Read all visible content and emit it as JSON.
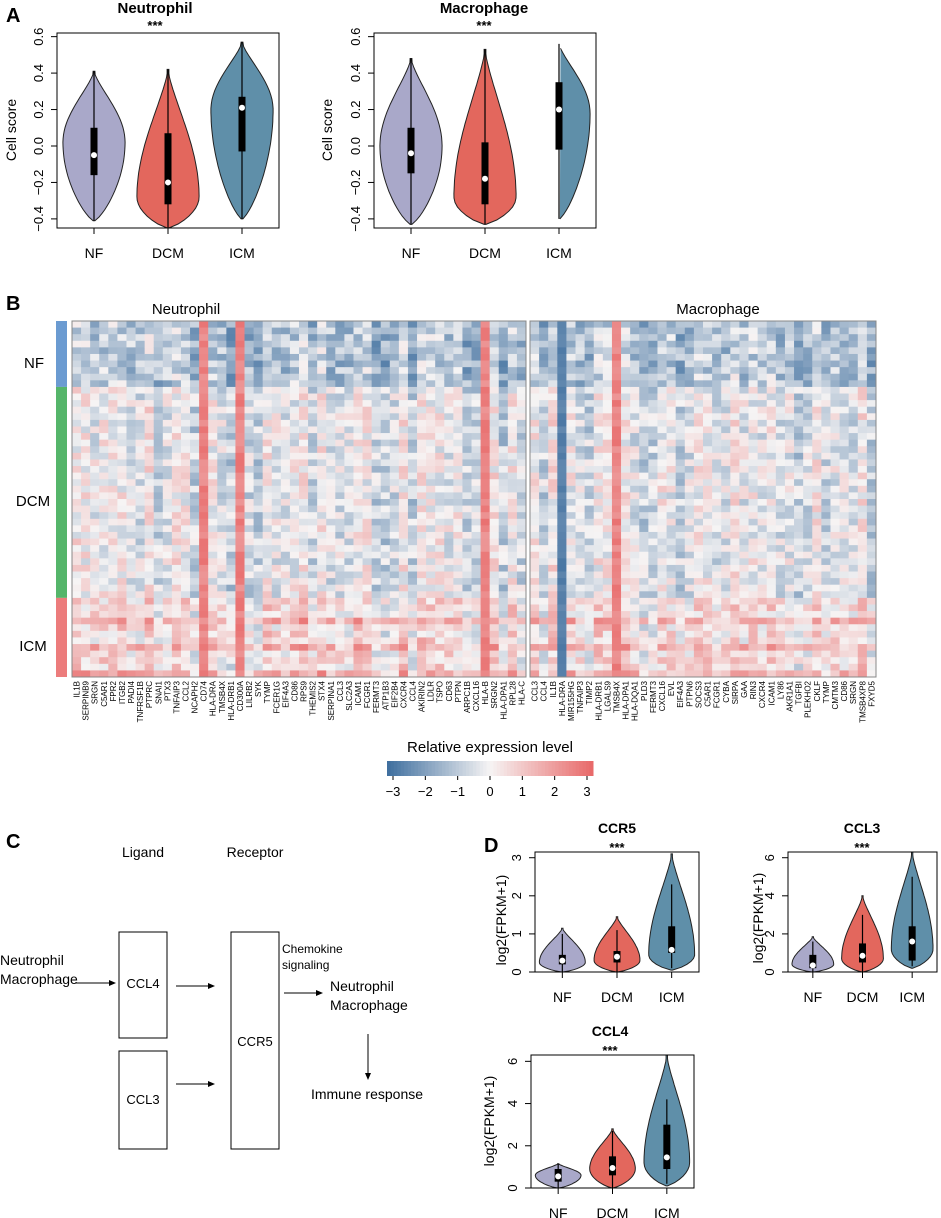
{
  "colors": {
    "NF": "#a9a8c9",
    "DCM": "#e3675d",
    "ICM": "#5f8fa9"
  },
  "panel_labels": [
    "A",
    "B",
    "C",
    "D"
  ],
  "significance": "***",
  "chart_data": [
    {
      "type": "violin",
      "panel": "A",
      "title": "Neutrophil",
      "ylabel": "Cell score",
      "categories": [
        "NF",
        "DCM",
        "ICM"
      ],
      "ylim": [
        -0.45,
        0.62
      ],
      "yticks": [
        -0.4,
        -0.2,
        0.0,
        0.2,
        0.4,
        0.6
      ],
      "ytick_labels": [
        "−0.4",
        "−0.2",
        "0.0",
        "0.2",
        "0.4",
        "0.6"
      ],
      "groups": [
        {
          "name": "NF",
          "min": -0.41,
          "q1": -0.16,
          "median": -0.05,
          "q3": 0.1,
          "max": 0.41,
          "wlo": -0.41,
          "whi": 0.41,
          "peak": 0.02,
          "width": 0.42
        },
        {
          "name": "DCM",
          "min": -0.45,
          "q1": -0.32,
          "median": -0.2,
          "q3": 0.07,
          "max": 0.42,
          "wlo": -0.45,
          "whi": 0.42,
          "peak": -0.28,
          "width": 0.42
        },
        {
          "name": "ICM",
          "min": -0.4,
          "q1": -0.03,
          "median": 0.21,
          "q3": 0.27,
          "max": 0.57,
          "wlo": -0.4,
          "whi": 0.57,
          "peak": 0.2,
          "width": 0.42
        }
      ]
    },
    {
      "type": "violin",
      "panel": "A",
      "title": "Macrophage",
      "ylabel": "Cell score",
      "categories": [
        "NF",
        "DCM",
        "ICM"
      ],
      "ylim": [
        -0.45,
        0.62
      ],
      "yticks": [
        -0.4,
        -0.2,
        0.0,
        0.2,
        0.4,
        0.6
      ],
      "ytick_labels": [
        "−0.4",
        "−0.2",
        "0.0",
        "0.2",
        "0.4",
        "0.6"
      ],
      "groups": [
        {
          "name": "NF",
          "min": -0.43,
          "q1": -0.15,
          "median": -0.04,
          "q3": 0.1,
          "max": 0.48,
          "wlo": -0.43,
          "whi": 0.48,
          "peak": 0.0,
          "width": 0.42
        },
        {
          "name": "DCM",
          "min": -0.43,
          "q1": -0.32,
          "median": -0.18,
          "q3": 0.02,
          "max": 0.53,
          "wlo": -0.43,
          "whi": 0.53,
          "peak": -0.28,
          "width": 0.42
        },
        {
          "name": "ICM",
          "min": -0.4,
          "q1": -0.02,
          "median": 0.2,
          "q3": 0.35,
          "max": 0.56,
          "wlo": -0.4,
          "whi": 0.56,
          "peak": 0.18,
          "width": 0.42
        }
      ]
    },
    {
      "type": "heatmap",
      "panel": "B",
      "row_groups": [
        {
          "name": "NF",
          "rows": 10
        },
        {
          "name": "DCM",
          "rows": 32
        },
        {
          "name": "ICM",
          "rows": 12
        }
      ],
      "row_group_colors": [
        "#6b9bd1",
        "#55b56a",
        "#ec7c7c"
      ],
      "blocks": [
        {
          "title": "Neutrophil",
          "genes": [
            "IL1B",
            "SERPINB9",
            "SRGN",
            "C5AR1",
            "FPR2",
            "ITGB2",
            "PADI4",
            "TNFRSF1B",
            "PTPRC",
            "SNAI1",
            "PTX3",
            "TNFAIP3",
            "CCL2",
            "NCAPH2",
            "CD74",
            "HLA-DRA",
            "TMSB4X",
            "HLA-DRB1",
            "CD300A",
            "LILRB2",
            "SYK",
            "TYMP",
            "FCER1G",
            "EIF4A3",
            "CD86",
            "RPS9",
            "THEMIS2",
            "STX4",
            "SERPINA1",
            "CCL3",
            "SLC2A3",
            "ICAM1",
            "FCGR1",
            "FERMT3",
            "ATP1B3",
            "EIF2B4",
            "CXCR4",
            "CCL4",
            "AKIRIN2",
            "LDLR",
            "TSPO",
            "CD63",
            "PTPN",
            "ARPC1B",
            "CXCL16",
            "HLA-B",
            "SRGN2",
            "HLA-DPA1",
            "RPL28",
            "HLA-C"
          ],
          "hot_cols": [
            14,
            18,
            45
          ]
        },
        {
          "title": "Macrophage",
          "genes": [
            "CCL3",
            "CCL4",
            "IL1B",
            "HLA-DRA",
            "MIR155HG",
            "TNFAIP3",
            "TIMP2",
            "HLA-DRB1",
            "LGALS9",
            "TMSB4X",
            "HLA-DPA1",
            "HLA-DQA1",
            "PLD3",
            "FERMT3",
            "CXCL16",
            "EVL",
            "EIF4A3",
            "PTPN6",
            "SOCS3",
            "C5AR1",
            "FCGR1",
            "CYBA",
            "SIRPA",
            "GAA",
            "RIN3",
            "CXCR4",
            "ICAM1",
            "LY86",
            "AKR1A1",
            "TGFBI",
            "PLEKHO2",
            "CKLF",
            "TYMP",
            "CMTM3",
            "CD86",
            "SRGN",
            "TMSB4XP8",
            "FXYD5"
          ],
          "hot_cols": [
            9
          ],
          "cold_cols": [
            3
          ]
        }
      ],
      "legend": {
        "title": "Relative expression level",
        "ticks": [
          "−3",
          "−2",
          "−1",
          "0",
          "1",
          "2",
          "3"
        ],
        "min": -3,
        "max": 3
      }
    },
    {
      "type": "violin",
      "panel": "D",
      "title": "CCR5",
      "ylabel": "log2(FPKM+1)",
      "categories": [
        "NF",
        "DCM",
        "ICM"
      ],
      "ylim": [
        0,
        3.15
      ],
      "yticks": [
        0,
        1,
        2,
        3
      ],
      "ytick_labels": [
        "0",
        "1",
        "2",
        "3"
      ],
      "groups": [
        {
          "name": "NF",
          "min": 0.0,
          "q1": 0.2,
          "median": 0.3,
          "q3": 0.45,
          "max": 1.15,
          "wlo": 0.0,
          "whi": 1.0,
          "peak": 0.25,
          "width": 0.42
        },
        {
          "name": "DCM",
          "min": 0.0,
          "q1": 0.25,
          "median": 0.4,
          "q3": 0.55,
          "max": 1.45,
          "wlo": 0.0,
          "whi": 1.1,
          "peak": 0.3,
          "width": 0.42
        },
        {
          "name": "ICM",
          "min": 0.05,
          "q1": 0.5,
          "median": 0.58,
          "q3": 1.2,
          "max": 3.1,
          "wlo": 0.1,
          "whi": 2.3,
          "peak": 0.45,
          "width": 0.42
        }
      ]
    },
    {
      "type": "violin",
      "panel": "D",
      "title": "CCL3",
      "ylabel": "log2(FPKM+1)",
      "categories": [
        "NF",
        "DCM",
        "ICM"
      ],
      "ylim": [
        0,
        6.3
      ],
      "yticks": [
        0,
        2,
        4,
        6
      ],
      "ytick_labels": [
        "0",
        "2",
        "4",
        "6"
      ],
      "groups": [
        {
          "name": "NF",
          "min": 0.0,
          "q1": 0.2,
          "median": 0.35,
          "q3": 0.9,
          "max": 1.85,
          "wlo": 0.0,
          "whi": 1.6,
          "peak": 0.4,
          "width": 0.42
        },
        {
          "name": "DCM",
          "min": 0.0,
          "q1": 0.5,
          "median": 0.85,
          "q3": 1.5,
          "max": 4.0,
          "wlo": 0.0,
          "whi": 3.0,
          "peak": 0.7,
          "width": 0.42
        },
        {
          "name": "ICM",
          "min": 0.2,
          "q1": 0.6,
          "median": 1.6,
          "q3": 2.4,
          "max": 6.3,
          "wlo": 0.3,
          "whi": 5.0,
          "peak": 1.2,
          "width": 0.42
        }
      ]
    },
    {
      "type": "violin",
      "panel": "D",
      "title": "CCL4",
      "ylabel": "log2(FPKM+1)",
      "categories": [
        "NF",
        "DCM",
        "ICM"
      ],
      "ylim": [
        0,
        6.3
      ],
      "yticks": [
        0,
        2,
        4,
        6
      ],
      "ytick_labels": [
        "0",
        "2",
        "4",
        "6"
      ],
      "groups": [
        {
          "name": "NF",
          "min": 0.0,
          "q1": 0.3,
          "median": 0.55,
          "q3": 0.9,
          "max": 1.15,
          "wlo": 0.0,
          "whi": 1.15,
          "peak": 0.6,
          "width": 0.42
        },
        {
          "name": "DCM",
          "min": 0.0,
          "q1": 0.6,
          "median": 0.95,
          "q3": 1.5,
          "max": 2.8,
          "wlo": 0.0,
          "whi": 2.7,
          "peak": 0.9,
          "width": 0.42
        },
        {
          "name": "ICM",
          "min": 0.1,
          "q1": 0.9,
          "median": 1.45,
          "q3": 3.0,
          "max": 6.3,
          "wlo": 0.2,
          "whi": 4.2,
          "peak": 1.2,
          "width": 0.42
        }
      ]
    }
  ],
  "diagram": {
    "ligand_header": "Ligand",
    "receptor_header": "Receptor",
    "source_line1": "Neutrophil",
    "source_line2": "Macrophage",
    "ligand1": "CCL4",
    "ligand2": "CCL3",
    "receptor": "CCR5",
    "signal_line1": "Chemokine",
    "signal_line2": "signaling",
    "target_line1": "Neutrophil",
    "target_line2": "Macrophage",
    "outcome": "Immune response"
  }
}
